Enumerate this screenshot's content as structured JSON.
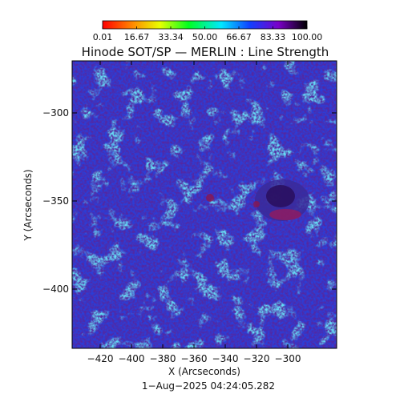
{
  "title": "Hinode SOT/SP — MERLIN : Line Strength",
  "colorbar": {
    "tick_labels": [
      "0.01",
      "16.67",
      "33.34",
      "50.00",
      "66.67",
      "83.33",
      "100.00"
    ],
    "colormap": "rainbow"
  },
  "axes": {
    "xlabel": "X (Arcseconds)",
    "ylabel": "Y (Arcseconds)",
    "xticks": [
      "−420",
      "−400",
      "−380",
      "−360",
      "−340",
      "−320",
      "−300"
    ],
    "yticks": [
      "−300",
      "−350",
      "−400"
    ]
  },
  "timestamp": "1−Aug−2025  04:24:05.282",
  "colors": {
    "background_blue": "#2a3ed8",
    "cyan_regions": "#22b4e8",
    "dark_spots": "#2a1060",
    "sunspot_red": "#9a1a5a"
  }
}
